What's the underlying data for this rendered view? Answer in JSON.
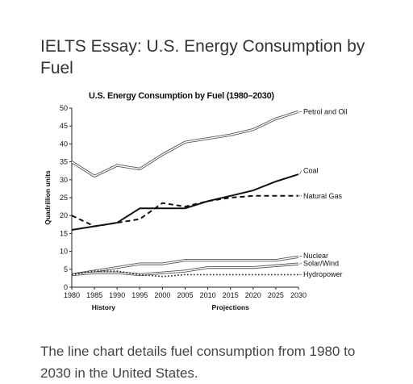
{
  "page": {
    "title": "IELTS Essay: U.S. Energy Consumption by Fuel",
    "caption": "The line chart details fuel consumption from 1980 to 2030 in the United States."
  },
  "chart_data": {
    "type": "line",
    "title": "U.S. Energy Consumption by Fuel (1980–2030)",
    "xlabel": "",
    "ylabel": "Quadrillion units",
    "x": [
      1980,
      1985,
      1990,
      1995,
      2000,
      2005,
      2010,
      2015,
      2020,
      2025,
      2030
    ],
    "xticks": [
      "1980",
      "1985",
      "1990",
      "1995",
      "2000",
      "2005",
      "2010",
      "2015",
      "2020",
      "2025",
      "2030"
    ],
    "ylim": [
      0,
      50
    ],
    "yticks": [
      "0",
      "5",
      "10",
      "15",
      "20",
      "25",
      "30",
      "35",
      "40",
      "45",
      "50"
    ],
    "period_labels": {
      "history": "History",
      "projections": "Projections"
    },
    "grid": false,
    "legend": "inline-right",
    "series": [
      {
        "name": "Petrol and Oil",
        "style": "double",
        "values": [
          35,
          31,
          34,
          33,
          37,
          40.5,
          41.5,
          42.5,
          44,
          47,
          49
        ]
      },
      {
        "name": "Coal",
        "style": "solid",
        "values": [
          16,
          17,
          18,
          22,
          22,
          22,
          24,
          25.5,
          27,
          29.5,
          31.5
        ]
      },
      {
        "name": "Natural Gas",
        "style": "dashed",
        "values": [
          20,
          17,
          18,
          19,
          23.5,
          22.5,
          24,
          25,
          25.5,
          25.5,
          25.5
        ]
      },
      {
        "name": "Nuclear",
        "style": "double",
        "values": [
          3.5,
          4.5,
          5.5,
          6.5,
          6.5,
          7.5,
          7.5,
          7.5,
          7.5,
          7.5,
          8.5
        ]
      },
      {
        "name": "Solar/Wind",
        "style": "double",
        "values": [
          3.5,
          4,
          4,
          3.5,
          4,
          4.5,
          5.5,
          5.5,
          5.5,
          6,
          6.5
        ]
      },
      {
        "name": "Hydropower",
        "style": "dotted",
        "values": [
          3.5,
          4.5,
          4.5,
          3.5,
          3,
          3.5,
          3.5,
          3.5,
          3.5,
          3.5,
          3.5
        ]
      }
    ]
  }
}
